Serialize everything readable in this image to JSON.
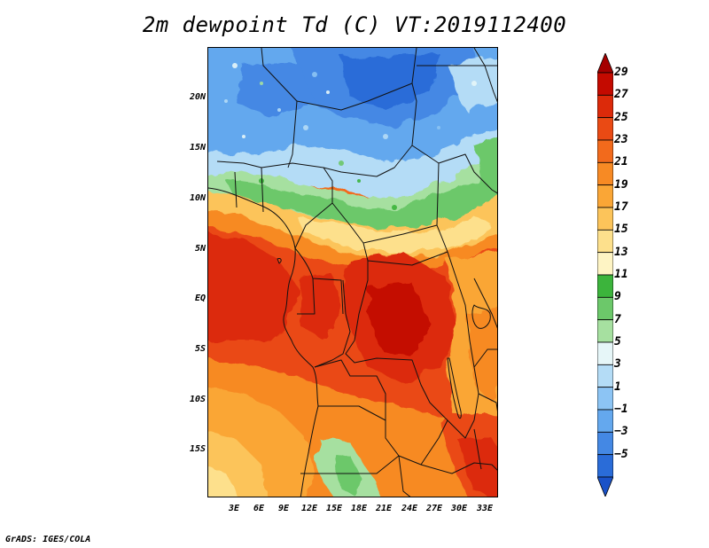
{
  "title": "2m dewpoint Td (C) VT:2019112400",
  "footer": "GrADS: IGES/COLA",
  "y_axis_labels": [
    "20N",
    "15N",
    "10N",
    "5N",
    "EQ",
    "5S",
    "10S",
    "15S"
  ],
  "x_axis_labels": [
    "3E",
    "6E",
    "9E",
    "12E",
    "15E",
    "18E",
    "21E",
    "24E",
    "27E",
    "30E",
    "33E"
  ],
  "colorbar": {
    "levels": [
      "29",
      "27",
      "25",
      "23",
      "21",
      "19",
      "17",
      "15",
      "13",
      "11",
      "9",
      "7",
      "5",
      "3",
      "1",
      "-1",
      "-3",
      "-5"
    ],
    "colors": [
      "#a50000",
      "#c40a00",
      "#dc2a0a",
      "#ea4a14",
      "#f26a1c",
      "#f78a24",
      "#faa636",
      "#fcc45a",
      "#fde08c",
      "#fef4c4",
      "#3cb43c",
      "#6cc86a",
      "#a6e0a0",
      "#e6f6f8",
      "#b4dcf6",
      "#8cc4f4",
      "#64a8ee",
      "#4488e4",
      "#2a6cd8",
      "#1a52c8"
    ]
  }
}
